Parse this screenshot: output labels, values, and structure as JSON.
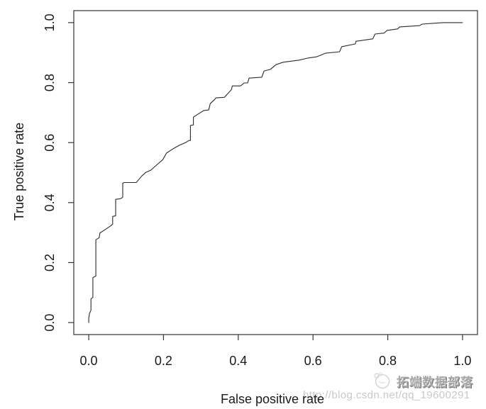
{
  "page": {
    "background": "#ffffff"
  },
  "watermark": {
    "url_text": "http://blog.csdn.net/qq_19600291",
    "brand_text": "拓端数据部落",
    "logo_icon": "tuoduan-panda-logo",
    "url_color": "#c9c9c9",
    "brand_color": "#a8a8a8"
  },
  "chart_data": {
    "type": "line",
    "subtype": "roc-curve",
    "title": "",
    "xlabel": "False positive rate",
    "ylabel": "True positive rate",
    "xlim": [
      0.0,
      1.0
    ],
    "ylim": [
      0.0,
      1.0
    ],
    "x_ticks": [
      "0.0",
      "0.2",
      "0.4",
      "0.6",
      "0.8",
      "1.0"
    ],
    "x_tick_values": [
      0.0,
      0.2,
      0.4,
      0.6,
      0.8,
      1.0
    ],
    "y_ticks": [
      "0.0",
      "0.2",
      "0.4",
      "0.6",
      "0.8",
      "1.0"
    ],
    "y_tick_values": [
      0.0,
      0.2,
      0.4,
      0.6,
      0.8,
      1.0
    ],
    "grid": false,
    "legend": "none",
    "frame": true,
    "line_color": "#2b2b2b",
    "axis_color": "#333333",
    "text_color": "#1a1a1a",
    "series": [
      {
        "name": "ROC curve",
        "x": [
          0.0,
          0.0,
          0.002,
          0.006,
          0.006,
          0.011,
          0.011,
          0.019,
          0.019,
          0.028,
          0.03,
          0.043,
          0.059,
          0.064,
          0.064,
          0.072,
          0.072,
          0.085,
          0.091,
          0.091,
          0.095,
          0.127,
          0.134,
          0.142,
          0.153,
          0.166,
          0.183,
          0.198,
          0.208,
          0.225,
          0.242,
          0.259,
          0.268,
          0.272,
          0.272,
          0.28,
          0.28,
          0.295,
          0.308,
          0.321,
          0.325,
          0.337,
          0.34,
          0.363,
          0.382,
          0.384,
          0.406,
          0.416,
          0.425,
          0.429,
          0.463,
          0.469,
          0.486,
          0.501,
          0.52,
          0.563,
          0.586,
          0.609,
          0.633,
          0.671,
          0.677,
          0.713,
          0.715,
          0.76,
          0.766,
          0.79,
          0.798,
          0.826,
          0.832,
          0.885,
          0.892,
          0.923,
          0.949,
          0.955,
          1.0
        ],
        "y": [
          0.0,
          0.015,
          0.03,
          0.041,
          0.079,
          0.084,
          0.15,
          0.155,
          0.276,
          0.283,
          0.299,
          0.309,
          0.323,
          0.328,
          0.354,
          0.356,
          0.411,
          0.413,
          0.418,
          0.465,
          0.467,
          0.467,
          0.477,
          0.489,
          0.501,
          0.508,
          0.527,
          0.543,
          0.565,
          0.579,
          0.591,
          0.6,
          0.607,
          0.607,
          0.657,
          0.659,
          0.685,
          0.697,
          0.707,
          0.709,
          0.73,
          0.744,
          0.749,
          0.751,
          0.777,
          0.789,
          0.789,
          0.799,
          0.799,
          0.815,
          0.818,
          0.839,
          0.844,
          0.86,
          0.868,
          0.875,
          0.882,
          0.886,
          0.898,
          0.903,
          0.92,
          0.929,
          0.938,
          0.946,
          0.962,
          0.965,
          0.974,
          0.979,
          0.986,
          0.99,
          0.995,
          0.998,
          1.0,
          1.0,
          1.0
        ]
      }
    ]
  }
}
